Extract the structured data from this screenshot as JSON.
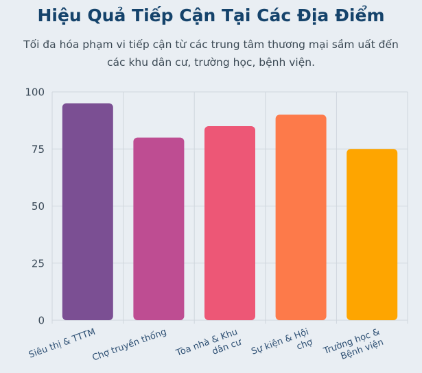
{
  "title": "Hiệu Quả Tiếp Cận Tại Các Địa Điểm",
  "subtitle": "Tối đa hóa phạm vi tiếp cận từ các trung tâm thương mại sầm uất đến các khu dân cư, trường học, bệnh viện.",
  "chart_data": {
    "type": "bar",
    "title": "",
    "xlabel": "",
    "ylabel": "",
    "categories": [
      [
        "Siêu thị & TTTM"
      ],
      [
        "Chợ truyền thống"
      ],
      [
        "Tòa nhà & Khu",
        "dân cư"
      ],
      [
        "Sự kiện & Hội",
        "chợ"
      ],
      [
        "Trường học &",
        "Bệnh viện"
      ]
    ],
    "values": [
      95,
      80,
      85,
      90,
      75
    ],
    "colors": [
      "#7b4f93",
      "#be4d92",
      "#ed5776",
      "#fd7a4a",
      "#fea500"
    ],
    "ylim": [
      0,
      100
    ],
    "yticks": [
      0,
      25,
      50,
      75,
      100
    ],
    "grid": true,
    "legend": "none"
  }
}
